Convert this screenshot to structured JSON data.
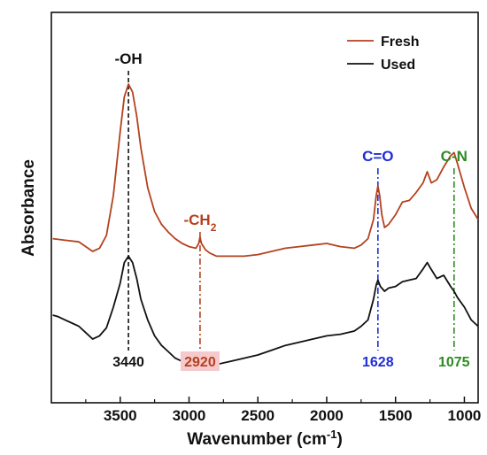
{
  "chart_data": {
    "type": "line",
    "xlabel": "Wavenumber (cm",
    "xlabel_sup": "-1",
    "xlabel_end": ")",
    "ylabel": "Absorbance",
    "xlim": [
      4000,
      900
    ],
    "x_reversed": true,
    "ylim": [
      -1.0,
      1.45
    ],
    "xticks": [
      3500,
      3000,
      2500,
      2000,
      1500,
      1000
    ],
    "y_tick_labels_shown": false,
    "grid": false,
    "legend_position": "top-right",
    "series": [
      {
        "name": "Fresh",
        "color": "#b5411e",
        "points": [
          [
            3990,
            0.03
          ],
          [
            3900,
            0.02
          ],
          [
            3800,
            0.01
          ],
          [
            3750,
            -0.02
          ],
          [
            3700,
            -0.05
          ],
          [
            3650,
            -0.03
          ],
          [
            3600,
            0.05
          ],
          [
            3550,
            0.3
          ],
          [
            3500,
            0.7
          ],
          [
            3470,
            0.92
          ],
          [
            3440,
            1.0
          ],
          [
            3410,
            0.95
          ],
          [
            3380,
            0.8
          ],
          [
            3350,
            0.6
          ],
          [
            3300,
            0.35
          ],
          [
            3250,
            0.2
          ],
          [
            3200,
            0.12
          ],
          [
            3150,
            0.07
          ],
          [
            3100,
            0.03
          ],
          [
            3050,
            0.0
          ],
          [
            3000,
            -0.02
          ],
          [
            2950,
            -0.03
          ],
          [
            2930,
            0.0
          ],
          [
            2920,
            0.04
          ],
          [
            2910,
            0.0
          ],
          [
            2880,
            -0.04
          ],
          [
            2850,
            -0.06
          ],
          [
            2800,
            -0.08
          ],
          [
            2700,
            -0.08
          ],
          [
            2600,
            -0.08
          ],
          [
            2500,
            -0.07
          ],
          [
            2400,
            -0.05
          ],
          [
            2300,
            -0.03
          ],
          [
            2200,
            -0.02
          ],
          [
            2100,
            -0.01
          ],
          [
            2000,
            0.0
          ],
          [
            1900,
            -0.02
          ],
          [
            1800,
            -0.03
          ],
          [
            1750,
            -0.01
          ],
          [
            1700,
            0.03
          ],
          [
            1660,
            0.15
          ],
          [
            1640,
            0.3
          ],
          [
            1628,
            0.36
          ],
          [
            1615,
            0.3
          ],
          [
            1600,
            0.18
          ],
          [
            1580,
            0.1
          ],
          [
            1550,
            0.12
          ],
          [
            1500,
            0.18
          ],
          [
            1450,
            0.26
          ],
          [
            1400,
            0.27
          ],
          [
            1350,
            0.32
          ],
          [
            1300,
            0.38
          ],
          [
            1270,
            0.45
          ],
          [
            1240,
            0.38
          ],
          [
            1200,
            0.4
          ],
          [
            1150,
            0.48
          ],
          [
            1100,
            0.55
          ],
          [
            1075,
            0.57
          ],
          [
            1050,
            0.5
          ],
          [
            1000,
            0.35
          ],
          [
            950,
            0.22
          ],
          [
            900,
            0.15
          ]
        ]
      },
      {
        "name": "Used",
        "color": "#111111",
        "points": [
          [
            3990,
            -0.45
          ],
          [
            3950,
            -0.46
          ],
          [
            3900,
            -0.48
          ],
          [
            3850,
            -0.5
          ],
          [
            3800,
            -0.52
          ],
          [
            3750,
            -0.56
          ],
          [
            3700,
            -0.6
          ],
          [
            3650,
            -0.58
          ],
          [
            3600,
            -0.53
          ],
          [
            3550,
            -0.4
          ],
          [
            3500,
            -0.25
          ],
          [
            3470,
            -0.12
          ],
          [
            3440,
            -0.08
          ],
          [
            3410,
            -0.12
          ],
          [
            3380,
            -0.22
          ],
          [
            3350,
            -0.35
          ],
          [
            3300,
            -0.48
          ],
          [
            3250,
            -0.58
          ],
          [
            3200,
            -0.64
          ],
          [
            3150,
            -0.68
          ],
          [
            3100,
            -0.72
          ],
          [
            3050,
            -0.74
          ],
          [
            3000,
            -0.75
          ],
          [
            2950,
            -0.75
          ],
          [
            2920,
            -0.72
          ],
          [
            2900,
            -0.74
          ],
          [
            2850,
            -0.75
          ],
          [
            2800,
            -0.76
          ],
          [
            2700,
            -0.74
          ],
          [
            2600,
            -0.72
          ],
          [
            2500,
            -0.7
          ],
          [
            2400,
            -0.67
          ],
          [
            2300,
            -0.64
          ],
          [
            2200,
            -0.62
          ],
          [
            2100,
            -0.6
          ],
          [
            2000,
            -0.58
          ],
          [
            1900,
            -0.57
          ],
          [
            1800,
            -0.55
          ],
          [
            1750,
            -0.52
          ],
          [
            1700,
            -0.48
          ],
          [
            1660,
            -0.35
          ],
          [
            1640,
            -0.26
          ],
          [
            1628,
            -0.23
          ],
          [
            1610,
            -0.27
          ],
          [
            1580,
            -0.3
          ],
          [
            1550,
            -0.28
          ],
          [
            1500,
            -0.27
          ],
          [
            1450,
            -0.24
          ],
          [
            1400,
            -0.23
          ],
          [
            1350,
            -0.22
          ],
          [
            1300,
            -0.16
          ],
          [
            1270,
            -0.12
          ],
          [
            1250,
            -0.15
          ],
          [
            1200,
            -0.22
          ],
          [
            1150,
            -0.2
          ],
          [
            1100,
            -0.27
          ],
          [
            1075,
            -0.3
          ],
          [
            1050,
            -0.34
          ],
          [
            1000,
            -0.4
          ],
          [
            950,
            -0.48
          ],
          [
            900,
            -0.52
          ]
        ]
      }
    ],
    "annotations": [
      {
        "label": "-OH",
        "label_sub": "",
        "x": 3440,
        "color": "#111111",
        "value_label": "3440",
        "value_highlight": false,
        "dash": "dash"
      },
      {
        "label": "-CH",
        "label_sub": "2",
        "x": 2920,
        "color": "#b5411e",
        "value_label": "2920",
        "value_highlight": true,
        "dash": "dashdot"
      },
      {
        "label": "C=O",
        "label_sub": "",
        "x": 1628,
        "color": "#1f2fd6",
        "value_label": "1628",
        "value_highlight": false,
        "dash": "dashdot"
      },
      {
        "label": "C-N",
        "label_sub": "",
        "x": 1075,
        "color": "#2e8b22",
        "value_label": "1075",
        "value_highlight": false,
        "dash": "dashdot"
      }
    ]
  }
}
